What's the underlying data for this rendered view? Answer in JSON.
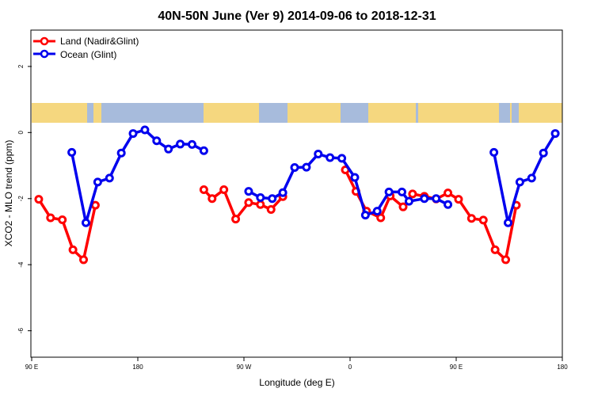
{
  "chart_data": {
    "type": "line",
    "title": "40N-50N June (Ver 9)   2014-09-06 to 2018-12-31",
    "xlabel": "Longitude (deg E)",
    "ylabel": "XCO2 - MLO trend (ppm)",
    "xlim": [
      90,
      540
    ],
    "ylim": [
      -6.8,
      3.1
    ],
    "x_ticks": [
      {
        "value": 90,
        "label": "90 E"
      },
      {
        "value": 180,
        "label": "180"
      },
      {
        "value": 270,
        "label": "90 W"
      },
      {
        "value": 360,
        "label": "0"
      },
      {
        "value": 450,
        "label": "90 E"
      },
      {
        "value": 540,
        "label": "180"
      }
    ],
    "y_ticks": [
      {
        "value": 2,
        "label": "2"
      },
      {
        "value": 0,
        "label": "0"
      },
      {
        "value": -2,
        "label": "-2"
      },
      {
        "value": -4,
        "label": "-4"
      },
      {
        "value": -6,
        "label": "-6"
      }
    ],
    "grid": false,
    "legend_position": "top-left",
    "map_strip": {
      "colors": {
        "land": "#f5d77f",
        "ocean": "#a7bbdc"
      }
    },
    "series": [
      {
        "name": "Land (Nadir&Glint)",
        "color": "#ff0000",
        "segments": [
          [
            [
              96,
              -2.02
            ],
            [
              106,
              -2.58
            ],
            [
              116,
              -2.64
            ],
            [
              125,
              -3.55
            ],
            [
              134,
              -3.85
            ],
            [
              144,
              -2.2
            ]
          ],
          [
            [
              236,
              -1.73
            ],
            [
              243,
              -2.0
            ],
            [
              253,
              -1.73
            ],
            [
              263,
              -2.62
            ],
            [
              274,
              -2.12
            ],
            [
              284,
              -2.18
            ],
            [
              293,
              -2.33
            ],
            [
              303,
              -1.94
            ]
          ],
          [
            [
              356,
              -1.13
            ],
            [
              365,
              -1.78
            ],
            [
              374,
              -2.38
            ],
            [
              386,
              -2.58
            ],
            [
              394,
              -1.92
            ],
            [
              405,
              -2.25
            ],
            [
              413,
              -1.86
            ],
            [
              423,
              -1.93
            ],
            [
              433,
              -2.01
            ],
            [
              443,
              -1.83
            ],
            [
              452,
              -2.02
            ],
            [
              463,
              -2.6
            ],
            [
              473,
              -2.65
            ],
            [
              483,
              -3.55
            ],
            [
              492,
              -3.85
            ],
            [
              501,
              -2.2
            ]
          ]
        ]
      },
      {
        "name": "Ocean (Glint)",
        "color": "#0000ee",
        "segments": [
          [
            [
              124,
              -0.6
            ],
            [
              136,
              -2.73
            ],
            [
              146,
              -1.5
            ],
            [
              156,
              -1.38
            ],
            [
              166,
              -0.62
            ],
            [
              176,
              -0.03
            ],
            [
              186,
              0.08
            ],
            [
              196,
              -0.25
            ],
            [
              206,
              -0.5
            ],
            [
              216,
              -0.35
            ],
            [
              226,
              -0.36
            ],
            [
              236,
              -0.55
            ]
          ],
          [
            [
              274,
              -1.78
            ],
            [
              284,
              -1.97
            ],
            [
              294,
              -2.0
            ],
            [
              303,
              -1.82
            ],
            [
              313,
              -1.06
            ],
            [
              323,
              -1.05
            ],
            [
              333,
              -0.65
            ],
            [
              343,
              -0.76
            ],
            [
              353,
              -0.78
            ],
            [
              364,
              -1.36
            ],
            [
              373,
              -2.5
            ],
            [
              383,
              -2.38
            ],
            [
              393,
              -1.8
            ],
            [
              404,
              -1.8
            ],
            [
              410,
              -2.08
            ],
            [
              423,
              -2.0
            ],
            [
              433,
              -2.0
            ],
            [
              443,
              -2.18
            ]
          ],
          [
            [
              482,
              -0.6
            ],
            [
              494,
              -2.73
            ],
            [
              504,
              -1.5
            ],
            [
              514,
              -1.38
            ],
            [
              524,
              -0.62
            ],
            [
              534,
              -0.03
            ]
          ]
        ]
      }
    ]
  }
}
